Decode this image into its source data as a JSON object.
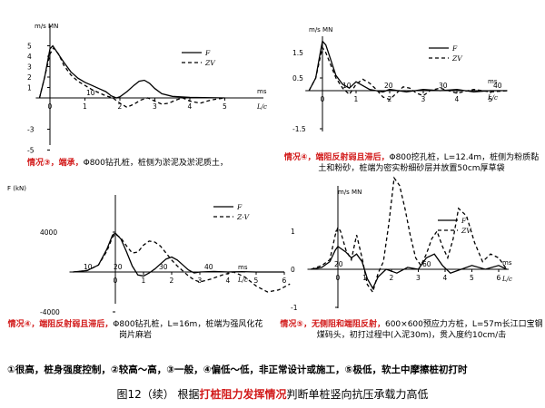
{
  "colors": {
    "accent": "#d21a1a",
    "curve": "#000000"
  },
  "chart_data": [
    {
      "id": "p1",
      "type": "line",
      "ylabel": "m/s MN",
      "xunit": "ms",
      "xlabel2": "L/c",
      "y_ticks": [
        "5",
        "4",
        "3",
        "2",
        "1",
        "-3",
        "-5"
      ],
      "x_ticks": [
        "0",
        "1",
        "2",
        "3",
        "4",
        "5"
      ],
      "top_ticks": [
        "10"
      ],
      "legend": [
        "F",
        "ZV"
      ],
      "series": [
        {
          "name": "F",
          "style": "solid",
          "x": [
            -0.3,
            -0.15,
            0,
            0.08,
            0.2,
            0.4,
            0.6,
            0.8,
            1.0,
            1.2,
            1.4,
            1.6,
            1.75,
            1.9,
            2.0,
            2.2,
            2.4,
            2.55,
            2.7,
            2.85,
            3.0,
            3.2,
            3.5,
            4.0,
            5.0
          ],
          "y": [
            0,
            2,
            4.7,
            5,
            4.4,
            3.4,
            2.5,
            1.9,
            1.5,
            1.2,
            0.9,
            0.6,
            0.2,
            0,
            0.1,
            0.6,
            1.2,
            1.6,
            1.7,
            1.4,
            0.9,
            0.4,
            0.15,
            0.05,
            0
          ]
        },
        {
          "name": "ZV",
          "style": "dashed",
          "x": [
            -0.3,
            -0.15,
            0,
            0.1,
            0.25,
            0.4,
            0.6,
            0.8,
            1.0,
            1.2,
            1.4,
            1.6,
            1.8,
            2.0,
            2.2,
            2.4,
            2.6,
            2.8,
            3.0,
            3.2,
            3.4,
            3.6,
            3.8,
            4.0,
            4.3,
            4.6,
            5.0
          ],
          "y": [
            0,
            2,
            4.2,
            4.8,
            4.2,
            3.1,
            2.2,
            1.6,
            1.2,
            0.8,
            0.5,
            0.2,
            0,
            -0.5,
            -0.9,
            -0.6,
            -0.2,
            0,
            -0.3,
            -0.6,
            -0.5,
            -0.2,
            0,
            -0.3,
            -0.5,
            -0.2,
            0
          ]
        }
      ]
    },
    {
      "id": "p2",
      "type": "line",
      "ylabel": "m/s MN",
      "xunit": "ms",
      "xlabel2": "L/c",
      "y_ticks": [
        "1.5",
        "0.5",
        "-1.5"
      ],
      "x_ticks": [
        "0",
        "1",
        "2",
        "3",
        "4",
        "5"
      ],
      "top_ticks": [
        "10",
        "20",
        "30",
        "40"
      ],
      "legend": [
        "F",
        "ZV"
      ],
      "series": [
        {
          "name": "F",
          "style": "solid",
          "x": [
            -0.4,
            -0.2,
            -0.05,
            0,
            0.1,
            0.25,
            0.4,
            0.6,
            0.8,
            1.0,
            1.2,
            1.4,
            1.6,
            1.8,
            2.0,
            2.5,
            3.0,
            3.5,
            4.0,
            4.5,
            5.0,
            5.5
          ],
          "y": [
            0,
            0.5,
            1.6,
            1.95,
            1.8,
            1.2,
            0.6,
            0.25,
            0.1,
            0.35,
            0.2,
            0.05,
            0,
            -0.05,
            0.05,
            -0.05,
            0.05,
            0,
            0.05,
            -0.05,
            0,
            0
          ]
        },
        {
          "name": "ZV",
          "style": "dashed",
          "x": [
            -0.4,
            -0.2,
            -0.05,
            0,
            0.1,
            0.25,
            0.4,
            0.6,
            0.8,
            1.0,
            1.2,
            1.4,
            1.6,
            1.8,
            2.0,
            2.2,
            2.4,
            2.6,
            2.8,
            3.0,
            3.2,
            3.5,
            4.0,
            4.5,
            5.0,
            5.5
          ],
          "y": [
            0,
            0.5,
            1.4,
            1.7,
            1.5,
            1.0,
            0.5,
            0.1,
            -0.15,
            0.25,
            0.45,
            0.3,
            0.05,
            -0.25,
            -0.35,
            -0.1,
            0.15,
            0.1,
            -0.1,
            -0.2,
            0,
            0.1,
            -0.1,
            0.05,
            -0.05,
            0
          ]
        }
      ]
    },
    {
      "id": "p3",
      "type": "line",
      "ylabel": "F (kN)",
      "xunit": "ms",
      "xlabel2": "L/c",
      "y_ticks": [
        "4000",
        "-4000"
      ],
      "x_ticks": [
        "0",
        "1",
        "2",
        "3",
        "4",
        "5",
        "6"
      ],
      "top_ticks": [
        "10",
        "20",
        "30",
        "40"
      ],
      "legend": [
        "F",
        "Z·V"
      ],
      "series": [
        {
          "name": "F",
          "style": "solid",
          "x": [
            -1.5,
            -1.0,
            -0.6,
            -0.3,
            -0.1,
            0,
            0.2,
            0.4,
            0.6,
            0.8,
            1.0,
            1.2,
            1.4,
            1.6,
            1.8,
            2.0,
            2.2,
            2.4,
            2.6,
            2.8,
            3.0,
            3.5,
            4.0,
            4.5,
            5.0,
            6.0
          ],
          "y": [
            0,
            150,
            700,
            2300,
            3700,
            3900,
            3300,
            2000,
            600,
            -300,
            -400,
            -100,
            300,
            800,
            1300,
            1500,
            1200,
            700,
            200,
            -100,
            0,
            50,
            0,
            40,
            0,
            0
          ]
        },
        {
          "name": "Z·V",
          "style": "dashed",
          "x": [
            -1.5,
            -1.0,
            -0.6,
            -0.3,
            -0.1,
            0,
            0.2,
            0.4,
            0.6,
            0.8,
            1.0,
            1.2,
            1.4,
            1.6,
            1.8,
            2.0,
            2.2,
            2.4,
            2.6,
            2.8,
            3.0,
            3.4,
            3.8,
            4.2,
            4.6,
            5.0,
            5.4,
            5.8,
            6.2
          ],
          "y": [
            0,
            150,
            700,
            2100,
            3500,
            3800,
            3400,
            2600,
            1900,
            2000,
            2700,
            3100,
            3000,
            2600,
            1900,
            1200,
            600,
            100,
            -400,
            -800,
            -1000,
            -700,
            -300,
            0,
            -500,
            -1400,
            -2000,
            -1800,
            -1200
          ]
        }
      ]
    },
    {
      "id": "p4",
      "type": "line",
      "ylabel": "m/s MN",
      "xunit": "ms",
      "xlabel2": "L/c",
      "y_ticks": [
        "1",
        "0",
        "-1"
      ],
      "x_ticks": [
        "0",
        "1",
        "2",
        "3",
        "4",
        "5",
        "6"
      ],
      "top_ticks": [
        "20",
        "60"
      ],
      "legend": [
        "F",
        "ZV"
      ],
      "series": [
        {
          "name": "F",
          "style": "solid",
          "x": [
            -1.0,
            -0.6,
            -0.3,
            -0.1,
            0,
            0.1,
            0.3,
            0.5,
            0.7,
            0.9,
            1.1,
            1.3,
            1.5,
            1.8,
            2.2,
            2.6,
            3.0,
            3.3,
            3.6,
            3.9,
            4.2,
            4.6,
            5.0,
            5.5,
            6.0,
            6.3
          ],
          "y": [
            0,
            0.05,
            0.2,
            0.5,
            0.6,
            0.55,
            0.45,
            0.3,
            0.4,
            0.2,
            -0.25,
            -0.5,
            -0.2,
            0,
            -0.1,
            0.05,
            0,
            0.3,
            0.4,
            0.1,
            -0.1,
            0,
            0.1,
            0,
            0.1,
            0
          ]
        },
        {
          "name": "ZV",
          "style": "dashed",
          "x": [
            -1.0,
            -0.6,
            -0.3,
            -0.1,
            0,
            0.1,
            0.3,
            0.5,
            0.7,
            0.9,
            1.1,
            1.3,
            1.5,
            1.7,
            1.9,
            2.1,
            2.3,
            2.5,
            2.7,
            2.9,
            3.1,
            3.3,
            3.5,
            3.7,
            3.9,
            4.1,
            4.3,
            4.5,
            4.8,
            5.1,
            5.4,
            5.7,
            6.0,
            6.3
          ],
          "y": [
            0,
            0.1,
            0.25,
            0.9,
            1.1,
            1.0,
            0.5,
            0.25,
            0.9,
            0.3,
            -0.4,
            -0.6,
            -0.1,
            0.2,
            1.2,
            2.4,
            2.2,
            1.6,
            0.9,
            0.3,
            0.1,
            0.4,
            0.8,
            1.0,
            0.6,
            0.3,
            0.8,
            1.6,
            1.4,
            0.7,
            0.2,
            0.4,
            0.3,
            0
          ]
        }
      ]
    }
  ],
  "captions": {
    "p1": {
      "tag": "情况③，端承，",
      "rest": "Φ800钻孔桩，桩侧为淤泥及淤泥质土，"
    },
    "p2": {
      "tag": "情况④，端阻反射弱且滞后，",
      "rest": "Φ800挖孔桩，L=12.4m，桩侧为粉质黏土和粉砂，桩端为密实粉细砂层并放置50cm厚草袋"
    },
    "p3": {
      "tag": "情况④，端阻反射弱且滞后，",
      "rest": "Φ800钻孔桩，L=16m，桩端为强风化花岗片麻岩"
    },
    "p4": {
      "tag": "情况⑤，无侧阻和端阻反射，",
      "rest": "600×600预应力方桩，L=57m长江口宝钢煤码头，初打过程中(入泥30m)，贯入度约10cm/击"
    }
  },
  "bottom_line": "①很高，桩身强度控制，②较高～高，③一般，④偏低～低，非正常设计或施工，⑤极低，软土中摩擦桩初打时",
  "figure_title": {
    "prefix": "图12（续）  根据",
    "highlight": "打桩阻力发挥情况",
    "suffix": "判断单桩竖向抗压承载力高低"
  }
}
